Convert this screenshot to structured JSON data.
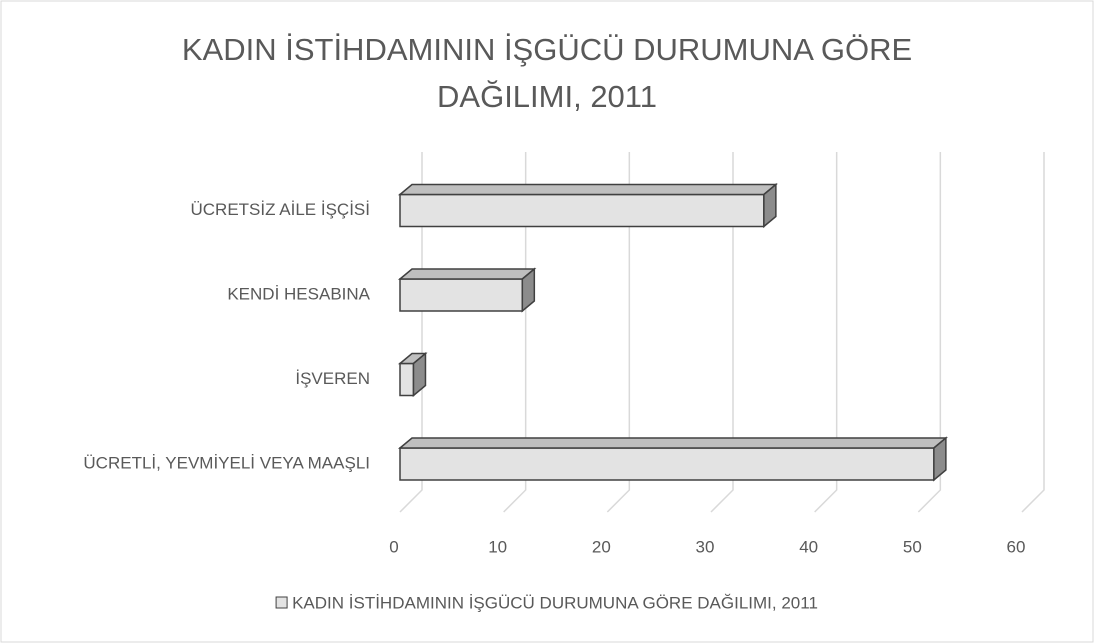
{
  "chart_data": {
    "type": "bar3d_horizontal",
    "title": "KADIN İSTİHDAMININ İŞGÜCÜ DURUMUNA GÖRE DAĞILIMI, 2011",
    "categories": [
      "ÜCRETLİ, YEVMİYELİ VEYA MAAŞLI",
      "İŞVEREN",
      "KENDİ HESABINA",
      "ÜCRETSİZ AİLE İŞÇİSİ"
    ],
    "series": [
      {
        "name": "KADIN İSTİHDAMININ İŞGÜCÜ DURUMUNA GÖRE DAĞILIMI, 2011",
        "color": "#e3e3e3",
        "values": [
          51.5,
          1.3,
          11.8,
          35.1
        ]
      }
    ],
    "xlim": [
      0,
      60
    ],
    "xticks": [
      0,
      10,
      20,
      30,
      40,
      50,
      60
    ],
    "grid": true,
    "legend": "bottom"
  }
}
